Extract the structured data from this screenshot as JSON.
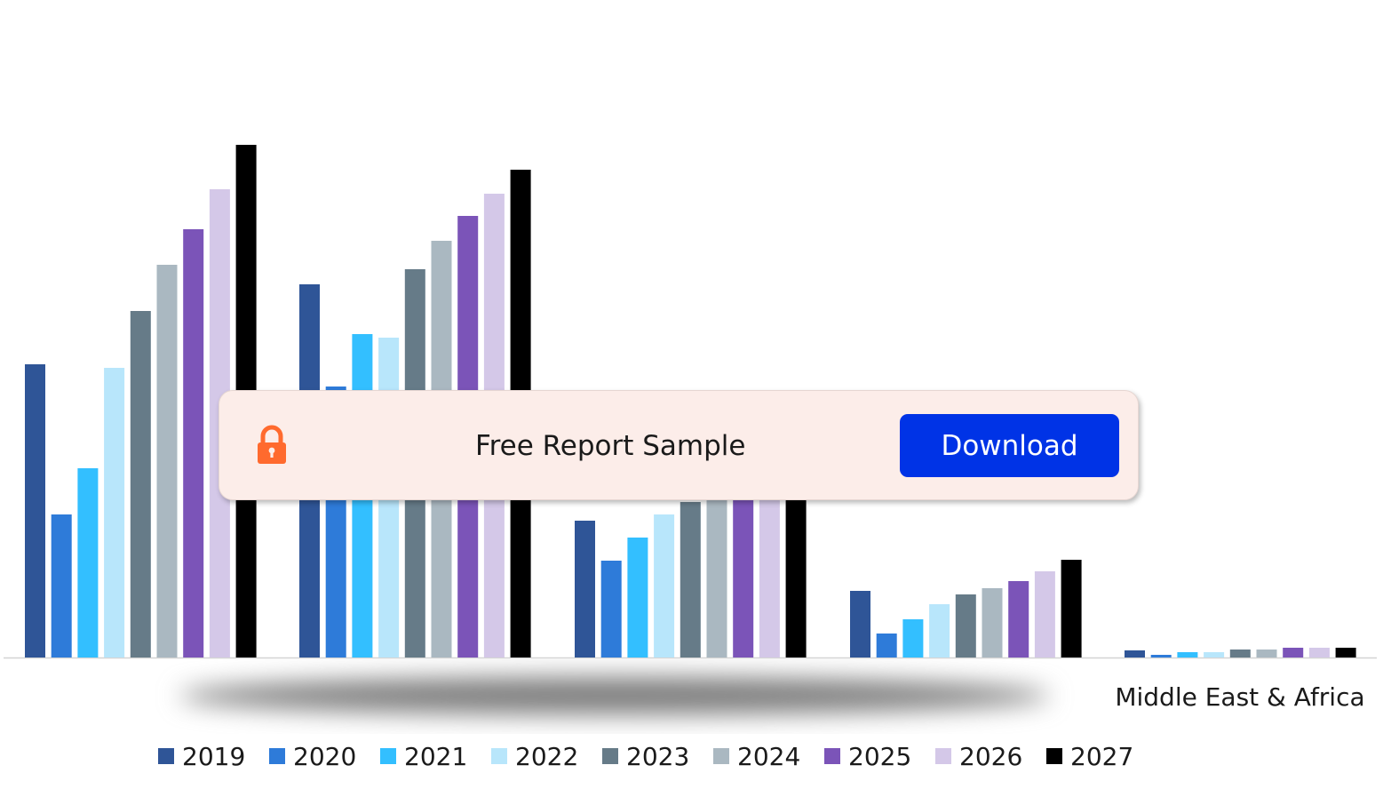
{
  "chart_data": {
    "type": "bar",
    "categories": [
      "",
      "",
      "",
      "",
      "Middle East & Africa"
    ],
    "series": [
      {
        "name": "2019",
        "color": "#2f5597",
        "values": [
          330,
          420,
          154,
          75,
          8
        ]
      },
      {
        "name": "2020",
        "color": "#2e7bd9",
        "values": [
          161,
          305,
          109,
          27,
          3
        ]
      },
      {
        "name": "2021",
        "color": "#33bfff",
        "values": [
          213,
          364,
          135,
          43,
          6
        ]
      },
      {
        "name": "2022",
        "color": "#b8e6fb",
        "values": [
          326,
          360,
          161,
          60,
          6
        ]
      },
      {
        "name": "2023",
        "color": "#667b88",
        "values": [
          390,
          437,
          175,
          71,
          9
        ]
      },
      {
        "name": "2024",
        "color": "#aab8c1",
        "values": [
          442,
          469,
          194,
          78,
          9
        ]
      },
      {
        "name": "2025",
        "color": "#7b54b8",
        "values": [
          482,
          497,
          207,
          86,
          11
        ]
      },
      {
        "name": "2026",
        "color": "#d4c8e8",
        "values": [
          527,
          522,
          216,
          97,
          11
        ]
      },
      {
        "name": "2027",
        "color": "#000000",
        "values": [
          577,
          549,
          226,
          110,
          11
        ]
      }
    ],
    "ylim": [
      0,
      577
    ],
    "legend_position": "bottom",
    "grid": false
  },
  "overlay": {
    "text": "Free Report Sample",
    "button_label": "Download",
    "icon": "lock-icon",
    "lock_color": "#ff6a2e",
    "card_color": "#fcede9",
    "button_color": "#0033e6"
  }
}
